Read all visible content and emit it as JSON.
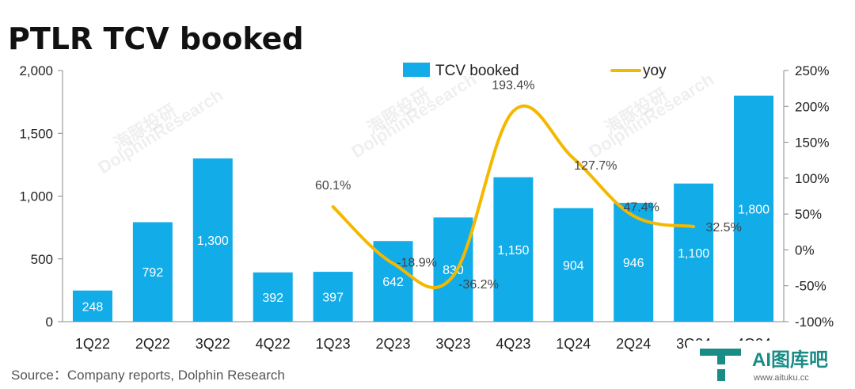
{
  "chart_data": {
    "type": "bar+line",
    "title": "PTLR TCV booked",
    "categories": [
      "1Q22",
      "2Q22",
      "3Q22",
      "4Q22",
      "1Q23",
      "2Q23",
      "3Q23",
      "4Q23",
      "1Q24",
      "2Q24",
      "3Q24",
      "4Q24"
    ],
    "series": [
      {
        "name": "TCV booked",
        "type": "bar",
        "axis": "left",
        "values": [
          248,
          792,
          1300,
          392,
          397,
          642,
          830,
          1150,
          904,
          946,
          1100,
          1800
        ],
        "labels": [
          "248",
          "792",
          "1,300",
          "392",
          "397",
          "642",
          "830",
          "1,150",
          "904",
          "946",
          "1,100",
          "1,800"
        ],
        "color": "#12ace8"
      },
      {
        "name": "yoy",
        "type": "line",
        "axis": "right",
        "values": [
          null,
          null,
          null,
          null,
          60.1,
          -18.9,
          -36.2,
          193.4,
          127.7,
          47.4,
          32.5,
          null
        ],
        "labels": [
          "",
          "",
          "",
          "",
          "60.1%",
          "-18.9%",
          "-36.2%",
          "193.4%",
          "127.7%",
          "47.4%",
          "32.5%",
          ""
        ],
        "color": "#f5b800"
      }
    ],
    "y_left": {
      "min": 0,
      "max": 2000,
      "ticks": [
        "0",
        "500",
        "1,000",
        "1,500",
        "2,000"
      ]
    },
    "y_right": {
      "min": -100,
      "max": 250,
      "ticks": [
        "-100%",
        "-50%",
        "0%",
        "50%",
        "100%",
        "150%",
        "200%",
        "250%"
      ]
    },
    "legend_position": "top-right",
    "grid": false
  },
  "source": "Source：Company reports, Dolphin Research",
  "watermark": {
    "cn": "海豚投研",
    "en": "DolphinResearch"
  },
  "logo": {
    "text": "AI图库吧",
    "sub": "www.aituku.cc"
  }
}
